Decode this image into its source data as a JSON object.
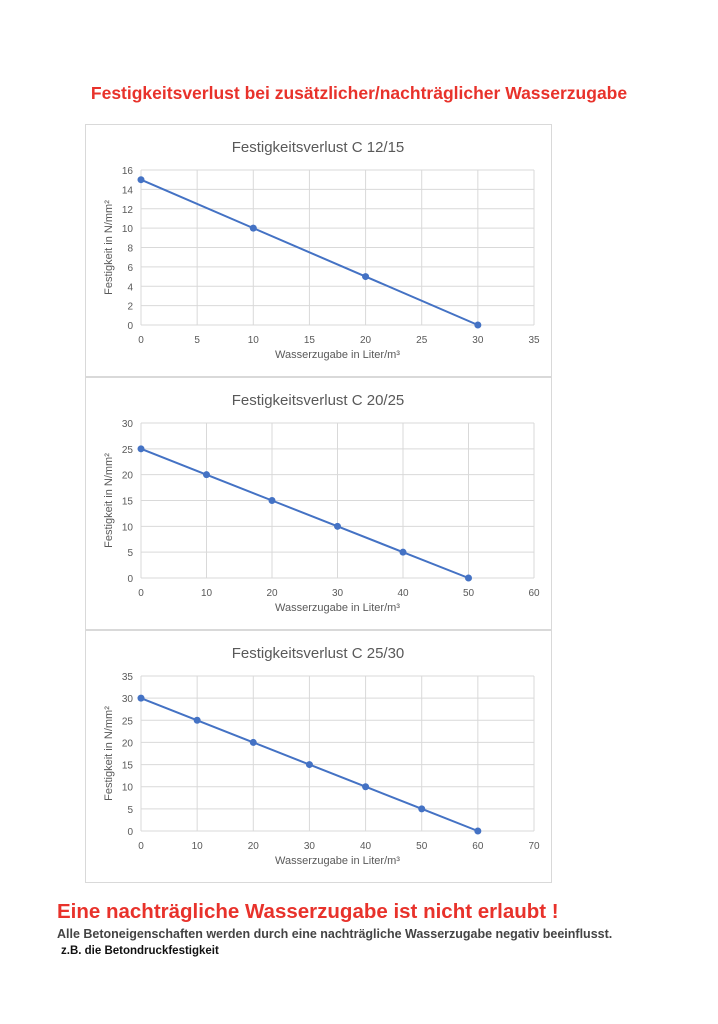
{
  "title": "Festigkeitsverlust bei zusätzlicher/nachträglicher Wasserzugabe",
  "warning": "Eine nachträgliche Wasserzugabe ist nicht erlaubt !",
  "note": "Alle Betoneigenschaften werden durch eine nachträgliche Wasserzugabe negativ beeinflusst.",
  "example": "z.B. die Betondruckfestigkeit",
  "colors": {
    "accent": "#e8322b",
    "series": "#4472c4",
    "grid": "#d9d9d9"
  },
  "chart_data": [
    {
      "type": "line",
      "title": "Festigkeitsverlust C 12/15",
      "xlabel": "Wasserzugabe in Liter/m³",
      "ylabel": "Festigkeit in N/mm²",
      "xlim": [
        0,
        35
      ],
      "ylim": [
        0,
        16
      ],
      "xticks": [
        0,
        5,
        10,
        15,
        20,
        25,
        30,
        35
      ],
      "yticks": [
        0,
        2,
        4,
        6,
        8,
        10,
        12,
        14,
        16
      ],
      "grid": true,
      "x": [
        0,
        10,
        20,
        30
      ],
      "y": [
        15,
        10,
        5,
        0
      ]
    },
    {
      "type": "line",
      "title": "Festigkeitsverlust C 20/25",
      "xlabel": "Wasserzugabe in Liter/m³",
      "ylabel": "Festigkeit in N/mm²",
      "xlim": [
        0,
        60
      ],
      "ylim": [
        0,
        30
      ],
      "xticks": [
        0,
        10,
        20,
        30,
        40,
        50,
        60
      ],
      "yticks": [
        0,
        5,
        10,
        15,
        20,
        25,
        30
      ],
      "grid": true,
      "x": [
        0,
        10,
        20,
        30,
        40,
        50
      ],
      "y": [
        25,
        20,
        15,
        10,
        5,
        0
      ]
    },
    {
      "type": "line",
      "title": "Festigkeitsverlust C 25/30",
      "xlabel": "Wasserzugabe in Liter/m³",
      "ylabel": "Festigkeit in N/mm²",
      "xlim": [
        0,
        70
      ],
      "ylim": [
        0,
        35
      ],
      "xticks": [
        0,
        10,
        20,
        30,
        40,
        50,
        60,
        70
      ],
      "yticks": [
        0,
        5,
        10,
        15,
        20,
        25,
        30,
        35
      ],
      "grid": true,
      "x": [
        0,
        10,
        20,
        30,
        40,
        50,
        60
      ],
      "y": [
        30,
        25,
        20,
        15,
        10,
        5,
        0
      ]
    }
  ]
}
